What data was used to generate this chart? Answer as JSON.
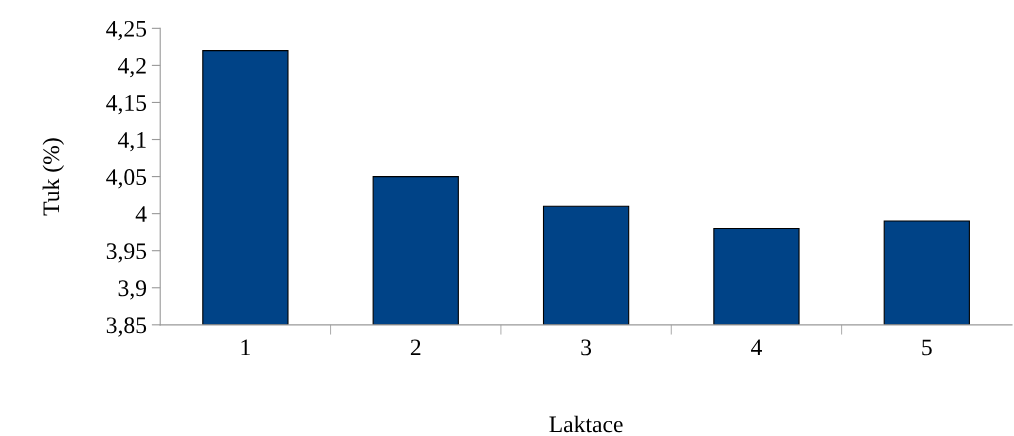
{
  "chart_data": {
    "type": "bar",
    "xlabel": "Laktace",
    "ylabel": "Tuk (%)",
    "categories": [
      "1",
      "2",
      "3",
      "4",
      "5"
    ],
    "values": [
      4.22,
      4.05,
      4.01,
      3.98,
      3.99
    ],
    "color": "#004387",
    "ylim": [
      3.85,
      4.25
    ],
    "yticks": [
      {
        "value": 3.85,
        "label": "3,85"
      },
      {
        "value": 3.9,
        "label": "3,9"
      },
      {
        "value": 3.95,
        "label": "3,95"
      },
      {
        "value": 4.0,
        "label": "4"
      },
      {
        "value": 4.05,
        "label": "4,05"
      },
      {
        "value": 4.1,
        "label": "4,1"
      },
      {
        "value": 4.15,
        "label": "4,15"
      },
      {
        "value": 4.2,
        "label": "4,2"
      },
      {
        "value": 4.25,
        "label": "4,25"
      }
    ],
    "grid": false,
    "legend": false
  }
}
